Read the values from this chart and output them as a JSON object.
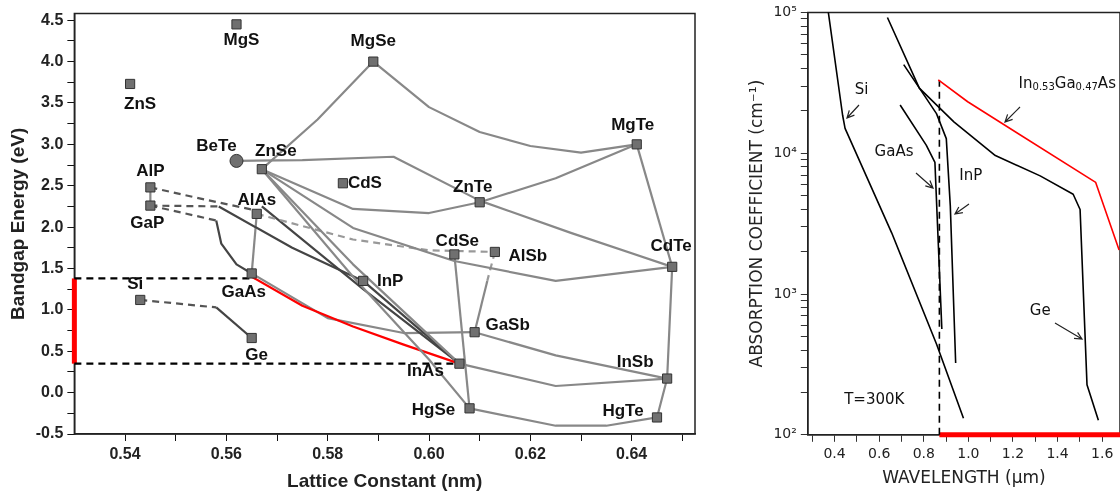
{
  "chart_data": [
    {
      "type": "scatter",
      "xlabel": "Lattice Constant (nm)",
      "ylabel": "Bandgap Energy (eV)",
      "xlim": [
        0.53,
        0.6525
      ],
      "ylim": [
        -0.5,
        4.58
      ],
      "xticks": [
        {
          "value": 0.54,
          "label": "0.54"
        },
        {
          "value": 0.55,
          "label": null
        },
        {
          "value": 0.56,
          "label": "0.56"
        },
        {
          "value": 0.57,
          "label": null
        },
        {
          "value": 0.58,
          "label": "0.58"
        },
        {
          "value": 0.59,
          "label": null
        },
        {
          "value": 0.6,
          "label": "0.60"
        },
        {
          "value": 0.61,
          "label": null
        },
        {
          "value": 0.62,
          "label": "0.62"
        },
        {
          "value": 0.63,
          "label": null
        },
        {
          "value": 0.64,
          "label": "0.64"
        },
        {
          "value": 0.65,
          "label": null
        }
      ],
      "yticks": [
        {
          "value": -0.5,
          "label": "-0.5"
        },
        {
          "value": -0.25,
          "label": null
        },
        {
          "value": 0,
          "label": "0.0"
        },
        {
          "value": 0.25,
          "label": null
        },
        {
          "value": 0.5,
          "label": "0.5"
        },
        {
          "value": 0.75,
          "label": null
        },
        {
          "value": 1,
          "label": "1.0"
        },
        {
          "value": 1.25,
          "label": null
        },
        {
          "value": 1.5,
          "label": "1.5"
        },
        {
          "value": 1.75,
          "label": null
        },
        {
          "value": 2,
          "label": "2.0"
        },
        {
          "value": 2.25,
          "label": null
        },
        {
          "value": 2.5,
          "label": "2.5"
        },
        {
          "value": 2.75,
          "label": null
        },
        {
          "value": 3,
          "label": "3.0"
        },
        {
          "value": 3.25,
          "label": null
        },
        {
          "value": 3.5,
          "label": "3.5"
        },
        {
          "value": 3.75,
          "label": null
        },
        {
          "value": 4,
          "label": "4.0"
        },
        {
          "value": 4.25,
          "label": null
        },
        {
          "value": 4.5,
          "label": "4.5"
        }
      ],
      "grid": false,
      "legend": false,
      "series": [
        {
          "type": "line",
          "color": "#888888",
          "marker": "none",
          "line_style": "solid",
          "x": [
            0.567,
            0.578,
            0.589
          ],
          "values": [
            2.7,
            3.3,
            4.0
          ]
        },
        {
          "type": "line",
          "color": "#888888",
          "marker": "none",
          "line_style": "solid",
          "x": [
            0.589,
            0.6,
            0.61,
            0.62,
            0.63,
            0.641
          ],
          "values": [
            4.0,
            3.45,
            3.15,
            2.98,
            2.9,
            3.0
          ]
        },
        {
          "type": "line",
          "color": "#888888",
          "marker": "none",
          "line_style": "solid",
          "x": [
            0.562,
            0.575,
            0.593,
            0.61,
            0.628,
            0.648
          ],
          "values": [
            2.8,
            2.81,
            2.85,
            2.32,
            1.93,
            1.52
          ]
        },
        {
          "type": "line",
          "color": "#888888",
          "marker": "none",
          "line_style": "solid",
          "x": [
            0.567,
            0.585,
            0.6,
            0.61,
            0.625,
            0.641
          ],
          "values": [
            2.7,
            2.22,
            2.17,
            2.3,
            2.59,
            3.0
          ]
        },
        {
          "type": "line",
          "color": "#888888",
          "marker": "none",
          "line_style": "solid",
          "x": [
            0.567,
            0.585,
            0.605,
            0.625,
            0.648
          ],
          "values": [
            2.7,
            1.99,
            1.59,
            1.35,
            1.52
          ]
        },
        {
          "type": "line",
          "color": "#888888",
          "marker": "none",
          "line_style": "solid",
          "x": [
            0.567,
            0.585,
            0.6,
            0.608
          ],
          "values": [
            2.7,
            1.4,
            0.4,
            -0.19
          ]
        },
        {
          "type": "line",
          "color": "#888888",
          "marker": "none",
          "line_style": "solid",
          "x": [
            0.567,
            0.585,
            0.606
          ],
          "values": [
            2.7,
            1.55,
            0.35
          ]
        },
        {
          "type": "line",
          "color": "#888888",
          "marker": "none",
          "line_style": "solid",
          "x": [
            0.545,
            0.545
          ],
          "values": [
            2.48,
            2.26
          ]
        },
        {
          "type": "line",
          "color": "#555555",
          "marker": "none",
          "line_style": "dashed",
          "x": [
            0.545,
            0.556,
            0.566
          ],
          "values": [
            2.48,
            2.33,
            2.2
          ]
        },
        {
          "type": "line",
          "color": "#999999",
          "marker": "none",
          "line_style": "dashed",
          "x": [
            0.566,
            0.585,
            0.6,
            0.613
          ],
          "values": [
            2.16,
            1.85,
            1.72,
            1.7
          ]
        },
        {
          "type": "line",
          "color": "#555555",
          "marker": "none",
          "line_style": "dashed",
          "x": [
            0.545,
            0.558
          ],
          "values": [
            2.26,
            2.08
          ]
        },
        {
          "type": "line",
          "color": "#444444",
          "marker": "none",
          "line_style": "solid",
          "x": [
            0.558,
            0.559,
            0.562,
            0.565
          ],
          "values": [
            2.08,
            1.8,
            1.55,
            1.44
          ]
        },
        {
          "type": "line",
          "color": "#555555",
          "marker": "none",
          "line_style": "dashed",
          "x": [
            0.545,
            0.5585
          ],
          "values": [
            2.26,
            2.25
          ]
        },
        {
          "type": "line",
          "color": "#444444",
          "marker": "none",
          "line_style": "solid",
          "x": [
            0.5585,
            0.573,
            0.587
          ],
          "values": [
            2.25,
            1.75,
            1.35
          ]
        },
        {
          "type": "line",
          "color": "#444444",
          "marker": "none",
          "line_style": "solid",
          "x": [
            0.567,
            0.587,
            0.606
          ],
          "values": [
            2.25,
            1.25,
            0.35
          ]
        },
        {
          "type": "line",
          "color": "#888888",
          "marker": "none",
          "line_style": "solid",
          "x": [
            0.566,
            0.565
          ],
          "values": [
            2.16,
            1.44
          ]
        },
        {
          "type": "line",
          "color": "#ff0000",
          "marker": "none",
          "line_style": "solid",
          "x": [
            0.565,
            0.575,
            0.585,
            0.595,
            0.606
          ],
          "values": [
            1.4,
            1.05,
            0.8,
            0.58,
            0.35
          ]
        },
        {
          "type": "line",
          "color": "#444444",
          "marker": "none",
          "line_style": "solid",
          "x": [
            0.587,
            0.606
          ],
          "values": [
            1.35,
            0.35
          ]
        },
        {
          "type": "line",
          "color": "#888888",
          "marker": "none",
          "line_style": "solid",
          "x": [
            0.565,
            0.58,
            0.595,
            0.609
          ],
          "values": [
            1.44,
            0.9,
            0.72,
            0.73
          ]
        },
        {
          "type": "line",
          "color": "#555555",
          "marker": "none",
          "line_style": "dashed",
          "x": [
            0.543,
            0.558
          ],
          "values": [
            1.12,
            1.03
          ]
        },
        {
          "type": "line",
          "color": "#444444",
          "marker": "none",
          "line_style": "solid",
          "x": [
            0.558,
            0.565
          ],
          "values": [
            1.03,
            0.66
          ]
        },
        {
          "type": "line",
          "color": "#888888",
          "marker": "none",
          "line_style": "solid",
          "x": [
            0.605,
            0.608
          ],
          "values": [
            1.67,
            -0.19
          ]
        },
        {
          "type": "line",
          "color": "#999999",
          "marker": "none",
          "line_style": "dashed",
          "x": [
            0.613,
            0.6115
          ],
          "values": [
            1.7,
            1.35
          ]
        },
        {
          "type": "line",
          "color": "#888888",
          "marker": "none",
          "line_style": "solid",
          "x": [
            0.6115,
            0.609
          ],
          "values": [
            1.35,
            0.73
          ]
        },
        {
          "type": "line",
          "color": "#888888",
          "marker": "none",
          "line_style": "solid",
          "x": [
            0.609,
            0.625,
            0.647
          ],
          "values": [
            0.73,
            0.45,
            0.17
          ]
        },
        {
          "type": "line",
          "color": "#888888",
          "marker": "none",
          "line_style": "solid",
          "x": [
            0.606,
            0.625,
            0.647
          ],
          "values": [
            0.35,
            0.08,
            0.17
          ]
        },
        {
          "type": "line",
          "color": "#888888",
          "marker": "none",
          "line_style": "solid",
          "x": [
            0.608,
            0.625,
            0.635,
            0.645
          ],
          "values": [
            -0.19,
            -0.4,
            -0.4,
            -0.3
          ]
        },
        {
          "type": "line",
          "color": "#888888",
          "marker": "none",
          "line_style": "solid",
          "x": [
            0.641,
            0.648
          ],
          "values": [
            3.0,
            1.52
          ]
        },
        {
          "type": "line",
          "color": "#888888",
          "marker": "none",
          "line_style": "solid",
          "x": [
            0.648,
            0.647,
            0.645
          ],
          "values": [
            1.52,
            0.17,
            -0.3
          ]
        },
        {
          "type": "line",
          "color": "#000000",
          "marker": "none",
          "line_style": "dashed",
          "x": [
            0.53,
            0.565
          ],
          "values": [
            1.38,
            1.38
          ]
        },
        {
          "type": "line",
          "color": "#000000",
          "marker": "none",
          "line_style": "dashed",
          "x": [
            0.53,
            0.606
          ],
          "values": [
            0.35,
            0.35
          ]
        },
        {
          "type": "line",
          "color": "#ff0000",
          "marker": "none",
          "line_style": "solid",
          "x": [
            0.53,
            0.53
          ],
          "values": [
            0.35,
            1.38
          ]
        },
        {
          "type": "scatter",
          "color": "#707070",
          "marker": "square",
          "x": [
            0.562,
            0.541,
            0.567,
            0.545,
            0.545,
            0.566,
            0.565,
            0.543,
            0.565,
            0.589,
            0.583,
            0.587,
            0.641,
            0.61,
            0.605,
            0.613,
            0.648,
            0.609,
            0.606,
            0.647,
            0.608,
            0.645
          ],
          "values": [
            4.45,
            3.73,
            2.7,
            2.48,
            2.26,
            2.16,
            1.44,
            1.12,
            0.66,
            4.0,
            2.53,
            1.35,
            3.0,
            2.3,
            1.67,
            1.7,
            1.52,
            0.73,
            0.35,
            0.17,
            -0.19,
            -0.3
          ]
        },
        {
          "type": "scatter",
          "color": "#707070",
          "marker": "circle",
          "x": [
            0.562
          ],
          "values": [
            2.8
          ]
        }
      ],
      "annotations": [
        {
          "text": "MgS",
          "x": 0.562,
          "y": 4.45
        },
        {
          "text": "ZnS",
          "x": 0.541,
          "y": 3.73
        },
        {
          "text": "BeTe",
          "x": 0.562,
          "y": 2.8
        },
        {
          "text": "ZnSe",
          "x": 0.567,
          "y": 2.7
        },
        {
          "text": "AlP",
          "x": 0.545,
          "y": 2.48
        },
        {
          "text": "GaP",
          "x": 0.545,
          "y": 2.26
        },
        {
          "text": "AlAs",
          "x": 0.566,
          "y": 2.16
        },
        {
          "text": "Si",
          "x": 0.543,
          "y": 1.12
        },
        {
          "text": "GaAs",
          "x": 0.565,
          "y": 1.44
        },
        {
          "text": "Ge",
          "x": 0.565,
          "y": 0.66
        },
        {
          "text": "MgSe",
          "x": 0.589,
          "y": 4.0
        },
        {
          "text": "CdS",
          "x": 0.583,
          "y": 2.53
        },
        {
          "text": "InP",
          "x": 0.587,
          "y": 1.35
        },
        {
          "text": "MgTe",
          "x": 0.641,
          "y": 3.0
        },
        {
          "text": "ZnTe",
          "x": 0.61,
          "y": 2.3
        },
        {
          "text": "CdSe",
          "x": 0.605,
          "y": 1.67
        },
        {
          "text": "AlSb",
          "x": 0.613,
          "y": 1.7
        },
        {
          "text": "CdTe",
          "x": 0.648,
          "y": 1.52
        },
        {
          "text": "GaSb",
          "x": 0.609,
          "y": 0.73
        },
        {
          "text": "InAs",
          "x": 0.606,
          "y": 0.35
        },
        {
          "text": "InSb",
          "x": 0.647,
          "y": 0.17
        },
        {
          "text": "HgSe",
          "x": 0.608,
          "y": -0.19
        },
        {
          "text": "HgTe",
          "x": 0.645,
          "y": -0.3
        }
      ]
    },
    {
      "type": "line",
      "xlabel": "WAVELENGTH (μm)",
      "ylabel": "ABSORPTION COEFFICIENT (cm⁻¹)",
      "log": "y",
      "xlim": [
        0.28,
        1.68
      ],
      "ylim": [
        100,
        100000
      ],
      "xticks": [
        {
          "value": 0.3,
          "label": null
        },
        {
          "value": 0.4,
          "label": "0.4"
        },
        {
          "value": 0.5,
          "label": null
        },
        {
          "value": 0.6,
          "label": "0.6"
        },
        {
          "value": 0.7,
          "label": null
        },
        {
          "value": 0.8,
          "label": "0.8"
        },
        {
          "value": 0.9,
          "label": null
        },
        {
          "value": 1,
          "label": "1.0"
        },
        {
          "value": 1.1,
          "label": null
        },
        {
          "value": 1.2,
          "label": "1.2"
        },
        {
          "value": 1.3,
          "label": null
        },
        {
          "value": 1.4,
          "label": "1.4"
        },
        {
          "value": 1.5,
          "label": null
        },
        {
          "value": 1.6,
          "label": "1.6"
        }
      ],
      "yticks": [
        {
          "value": 100,
          "label": "10²"
        },
        {
          "value": 200,
          "label": null
        },
        {
          "value": 300,
          "label": null
        },
        {
          "value": 400,
          "label": null
        },
        {
          "value": 500,
          "label": null
        },
        {
          "value": 600,
          "label": null
        },
        {
          "value": 700,
          "label": null
        },
        {
          "value": 800,
          "label": null
        },
        {
          "value": 900,
          "label": null
        },
        {
          "value": 1000,
          "label": "10³"
        },
        {
          "value": 2000,
          "label": null
        },
        {
          "value": 3000,
          "label": null
        },
        {
          "value": 4000,
          "label": null
        },
        {
          "value": 5000,
          "label": null
        },
        {
          "value": 6000,
          "label": null
        },
        {
          "value": 7000,
          "label": null
        },
        {
          "value": 8000,
          "label": null
        },
        {
          "value": 9000,
          "label": null
        },
        {
          "value": 10000,
          "label": "10⁴"
        },
        {
          "value": 20000,
          "label": null
        },
        {
          "value": 30000,
          "label": null
        },
        {
          "value": 40000,
          "label": null
        },
        {
          "value": 50000,
          "label": null
        },
        {
          "value": 60000,
          "label": null
        },
        {
          "value": 70000,
          "label": null
        },
        {
          "value": 80000,
          "label": null
        },
        {
          "value": 90000,
          "label": null
        },
        {
          "value": 100000,
          "label": "10⁵"
        }
      ],
      "grid": false,
      "legend": false,
      "marker": "none",
      "series": [
        {
          "color": "#000000",
          "line_style": "solid",
          "x": [
            0.372,
            0.436,
            0.447,
            0.656,
            0.857,
            0.978
          ],
          "values": [
            100000,
            18600,
            15000,
            2720,
            442,
            131
          ]
        },
        {
          "color": "#000000",
          "line_style": "solid",
          "x": [
            0.694,
            0.811,
            0.85,
            0.86,
            0.881
          ],
          "values": [
            22000,
            11400,
            8600,
            3560,
            564
          ]
        },
        {
          "color": "#000000",
          "line_style": "solid",
          "x": [
            0.71,
            0.857,
            0.901,
            0.919,
            0.943
          ],
          "values": [
            42600,
            19100,
            12700,
            4210,
            324
          ]
        },
        {
          "color": "#000000",
          "line_style": "solid",
          "x": [
            0.637,
            0.78,
            0.935,
            1.121,
            1.322,
            1.47,
            1.501,
            1.532,
            1.583
          ],
          "values": [
            92000,
            29000,
            16700,
            9620,
            6900,
            5110,
            3980,
            227,
            127
          ]
        },
        {
          "color": "#ff0000",
          "line_style": "solid",
          "x": [
            0.865,
            0.997,
            1.571,
            1.676
          ],
          "values": [
            33200,
            23200,
            6200,
            2055
          ]
        },
        {
          "color": "#000000",
          "line_style": "dashed",
          "x": [
            0.87,
            0.87
          ],
          "values": [
            100,
            33000
          ]
        },
        {
          "color": "#ff0000",
          "line_style": "solid",
          "x": [
            0.87,
            1.68
          ],
          "values": [
            100,
            100
          ]
        }
      ],
      "annotations": [
        {
          "text": "Si",
          "x": 0.44,
          "y": 17300
        },
        {
          "text": "In$_{0.53}$Ga$_{0.47}$As",
          "x": 1.152,
          "y": 16200
        },
        {
          "text": "GaAs",
          "x": 0.855,
          "y": 5500
        },
        {
          "text": "InP",
          "x": 0.921,
          "y": 3600
        },
        {
          "text": "Ge",
          "x": 1.524,
          "y": 465
        },
        "T=300K"
      ]
    }
  ]
}
